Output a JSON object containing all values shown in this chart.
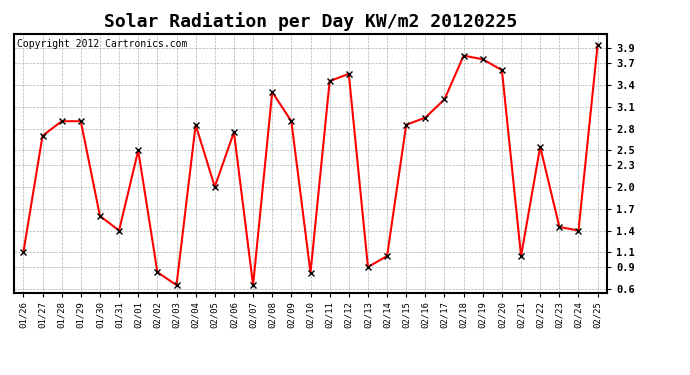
{
  "title": "Solar Radiation per Day KW/m2 20120225",
  "copyright": "Copyright 2012 Cartronics.com",
  "dates": [
    "01/26",
    "01/27",
    "01/28",
    "01/29",
    "01/30",
    "01/31",
    "02/01",
    "02/02",
    "02/03",
    "02/04",
    "02/05",
    "02/06",
    "02/07",
    "02/08",
    "02/09",
    "02/10",
    "02/11",
    "02/12",
    "02/13",
    "02/14",
    "02/15",
    "02/16",
    "02/17",
    "02/18",
    "02/19",
    "02/20",
    "02/21",
    "02/22",
    "02/23",
    "02/24",
    "02/25"
  ],
  "values": [
    1.1,
    2.7,
    2.9,
    2.9,
    1.6,
    1.4,
    2.5,
    0.83,
    0.65,
    2.85,
    2.0,
    2.75,
    0.65,
    3.3,
    2.9,
    0.82,
    3.45,
    3.55,
    0.9,
    1.05,
    2.85,
    2.95,
    3.2,
    3.8,
    3.75,
    3.6,
    1.05,
    2.55,
    1.45,
    1.4,
    3.95
  ],
  "line_color": "#ff0000",
  "marker": "x",
  "marker_color": "#000000",
  "marker_size": 5,
  "line_width": 1.5,
  "yticks": [
    0.6,
    0.9,
    1.1,
    1.4,
    1.7,
    2.0,
    2.3,
    2.5,
    2.8,
    3.1,
    3.4,
    3.7,
    3.9
  ],
  "ylim": [
    0.55,
    4.1
  ],
  "bg_color": "#ffffff",
  "grid_color": "#b0b0b0",
  "title_fontsize": 13,
  "copyright_fontsize": 7
}
